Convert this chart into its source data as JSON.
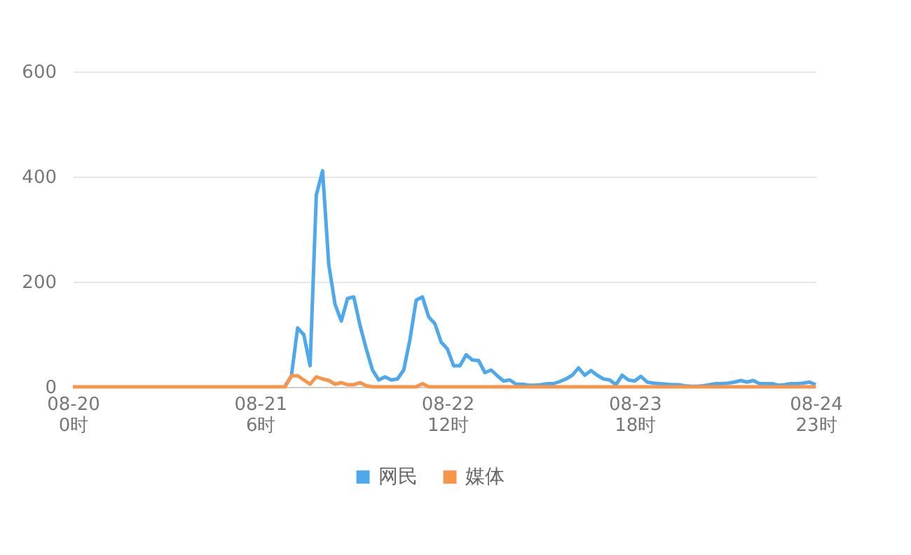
{
  "chart_data": {
    "type": "line",
    "categories": [
      "08-20\n0时",
      null,
      null,
      null,
      null,
      null,
      null,
      null,
      null,
      null,
      null,
      null,
      null,
      null,
      null,
      null,
      null,
      null,
      null,
      null,
      null,
      null,
      null,
      null,
      null,
      null,
      null,
      null,
      null,
      null,
      "08-21\n6时",
      null,
      null,
      null,
      null,
      null,
      null,
      null,
      null,
      null,
      null,
      null,
      null,
      null,
      null,
      null,
      null,
      null,
      null,
      null,
      null,
      null,
      null,
      null,
      null,
      null,
      null,
      null,
      null,
      null,
      "08-22\n12时",
      null,
      null,
      null,
      null,
      null,
      null,
      null,
      null,
      null,
      null,
      null,
      null,
      null,
      null,
      null,
      null,
      null,
      null,
      null,
      null,
      null,
      null,
      null,
      null,
      null,
      null,
      null,
      null,
      null,
      "08-23\n18时",
      null,
      null,
      null,
      null,
      null,
      null,
      null,
      null,
      null,
      null,
      null,
      null,
      null,
      null,
      null,
      null,
      null,
      null,
      null,
      null,
      null,
      null,
      null,
      null,
      null,
      null,
      null,
      null,
      "08-24\n23时"
    ],
    "series": [
      {
        "name": "网民",
        "color": "#4fa8ec",
        "values": [
          null,
          null,
          null,
          null,
          null,
          null,
          null,
          null,
          null,
          null,
          null,
          null,
          null,
          null,
          null,
          null,
          null,
          null,
          null,
          null,
          null,
          null,
          null,
          null,
          null,
          null,
          null,
          null,
          null,
          null,
          null,
          null,
          null,
          null,
          2,
          20,
          112,
          99,
          40,
          365,
          411,
          232,
          157,
          125,
          168,
          171,
          117,
          72,
          32,
          13,
          19,
          13,
          15,
          32,
          90,
          165,
          171,
          133,
          120,
          85,
          72,
          40,
          40,
          61,
          51,
          50,
          27,
          32,
          21,
          11,
          13,
          5,
          5,
          3,
          3,
          4,
          6,
          6,
          10,
          15,
          22,
          36,
          22,
          31,
          22,
          15,
          13,
          4,
          22,
          13,
          11,
          20,
          9,
          7,
          6,
          5,
          4,
          4,
          2,
          1,
          1,
          2,
          4,
          6,
          6,
          7,
          9,
          12,
          9,
          12,
          6,
          6,
          6,
          3,
          4,
          6,
          6,
          7,
          9,
          4
        ]
      },
      {
        "name": "媒体",
        "color": "#f7954a",
        "values": [
          0,
          0,
          0,
          0,
          0,
          0,
          0,
          0,
          0,
          0,
          0,
          0,
          0,
          0,
          0,
          0,
          0,
          0,
          0,
          0,
          0,
          0,
          0,
          0,
          0,
          0,
          0,
          0,
          0,
          0,
          0,
          0,
          0,
          0,
          0,
          21,
          21,
          13,
          5,
          19,
          15,
          12,
          5,
          8,
          4,
          4,
          8,
          2,
          0,
          0,
          0,
          0,
          0,
          0,
          0,
          0,
          6,
          0,
          0,
          0,
          0,
          0,
          0,
          0,
          0,
          0,
          0,
          0,
          0,
          0,
          0,
          0,
          0,
          0,
          0,
          0,
          0,
          0,
          0,
          0,
          0,
          0,
          0,
          0,
          0,
          0,
          0,
          0,
          0,
          0,
          0,
          0,
          0,
          0,
          0,
          0,
          0,
          0,
          0,
          0,
          0,
          0,
          0,
          0,
          0,
          0,
          0,
          0,
          0,
          0,
          0,
          0,
          0,
          0,
          0,
          0,
          0,
          0,
          0,
          0
        ]
      }
    ],
    "ylim": [
      0,
      600
    ],
    "yticks": [
      0,
      200,
      400,
      600
    ],
    "grid": "y",
    "legend": "bottom",
    "marker": "none",
    "line_style": "solid"
  }
}
